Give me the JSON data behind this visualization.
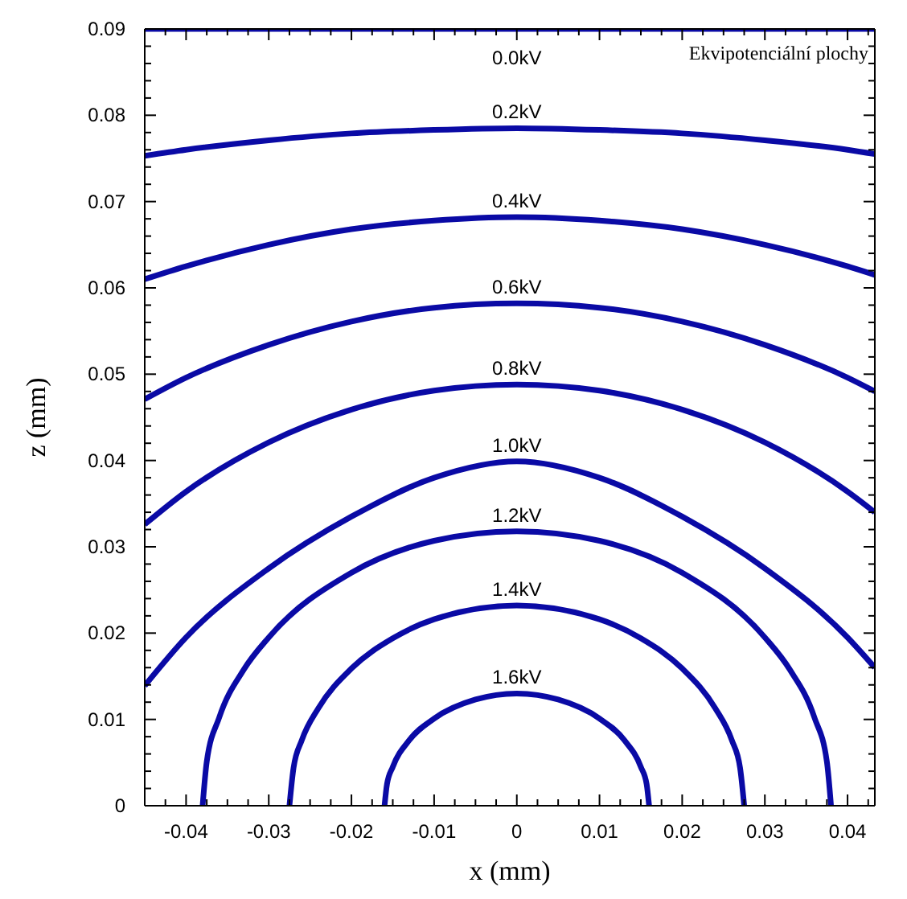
{
  "chart_data": {
    "type": "line",
    "xlabel": "x (mm)",
    "ylabel": "z (mm)",
    "annotations": [
      "Ekvipotenciální plochy"
    ],
    "xlim": [
      -0.045,
      0.0433
    ],
    "ylim": [
      0,
      0.09
    ],
    "xticks": [
      {
        "value": -0.045,
        "label": null
      },
      {
        "value": -0.0425,
        "label": null
      },
      -0.04,
      {
        "value": -0.0375,
        "label": null
      },
      {
        "value": -0.035,
        "label": null
      },
      {
        "value": -0.0325,
        "label": null
      },
      -0.03,
      {
        "value": -0.0275,
        "label": null
      },
      {
        "value": -0.025,
        "label": null
      },
      {
        "value": -0.0225,
        "label": null
      },
      -0.02,
      {
        "value": -0.0175,
        "label": null
      },
      {
        "value": -0.015,
        "label": null
      },
      {
        "value": -0.0125,
        "label": null
      },
      -0.01,
      {
        "value": -0.0075,
        "label": null
      },
      {
        "value": -0.005,
        "label": null
      },
      {
        "value": -0.0025,
        "label": null
      },
      0,
      {
        "value": 0.0025,
        "label": null
      },
      {
        "value": 0.005,
        "label": null
      },
      {
        "value": 0.0075,
        "label": null
      },
      0.01,
      {
        "value": 0.0125,
        "label": null
      },
      {
        "value": 0.015,
        "label": null
      },
      {
        "value": 0.0175,
        "label": null
      },
      0.02,
      {
        "value": 0.0225,
        "label": null
      },
      {
        "value": 0.025,
        "label": null
      },
      {
        "value": 0.0275,
        "label": null
      },
      0.03,
      {
        "value": 0.0325,
        "label": null
      },
      {
        "value": 0.035,
        "label": null
      },
      {
        "value": 0.0375,
        "label": null
      },
      0.04,
      {
        "value": 0.0425,
        "label": null
      }
    ],
    "yticks": [
      0,
      {
        "value": 0.002,
        "label": null
      },
      {
        "value": 0.004,
        "label": null
      },
      {
        "value": 0.006,
        "label": null
      },
      {
        "value": 0.008,
        "label": null
      },
      0.01,
      {
        "value": 0.012,
        "label": null
      },
      {
        "value": 0.014,
        "label": null
      },
      {
        "value": 0.016,
        "label": null
      },
      {
        "value": 0.018,
        "label": null
      },
      0.02,
      {
        "value": 0.022,
        "label": null
      },
      {
        "value": 0.024,
        "label": null
      },
      {
        "value": 0.026,
        "label": null
      },
      {
        "value": 0.028,
        "label": null
      },
      0.03,
      {
        "value": 0.032,
        "label": null
      },
      {
        "value": 0.034,
        "label": null
      },
      {
        "value": 0.036,
        "label": null
      },
      {
        "value": 0.038,
        "label": null
      },
      0.04,
      {
        "value": 0.042,
        "label": null
      },
      {
        "value": 0.044,
        "label": null
      },
      {
        "value": 0.046,
        "label": null
      },
      {
        "value": 0.048,
        "label": null
      },
      0.05,
      {
        "value": 0.052,
        "label": null
      },
      {
        "value": 0.054,
        "label": null
      },
      {
        "value": 0.056,
        "label": null
      },
      {
        "value": 0.058,
        "label": null
      },
      0.06,
      {
        "value": 0.062,
        "label": null
      },
      {
        "value": 0.064,
        "label": null
      },
      {
        "value": 0.066,
        "label": null
      },
      {
        "value": 0.068,
        "label": null
      },
      0.07,
      {
        "value": 0.072,
        "label": null
      },
      {
        "value": 0.074,
        "label": null
      },
      {
        "value": 0.076,
        "label": null
      },
      {
        "value": 0.078,
        "label": null
      },
      0.08,
      {
        "value": 0.082,
        "label": null
      },
      {
        "value": 0.084,
        "label": null
      },
      {
        "value": 0.086,
        "label": null
      },
      {
        "value": 0.088,
        "label": null
      },
      0.09
    ],
    "legend": false,
    "marker": "none",
    "line_style": "solid",
    "series": [
      {
        "name": "0.0kV",
        "color": "#0a0aa5",
        "x": [
          -0.045,
          0,
          0.0433
        ],
        "values": [
          0.09,
          0.09,
          0.09
        ]
      },
      {
        "name": "0.2kV",
        "color": "#0a0aa5",
        "x": [
          -0.045,
          -0.04,
          -0.03,
          -0.02,
          -0.01,
          0,
          0.01,
          0.02,
          0.03,
          0.04,
          0.0433
        ],
        "values": [
          0.0753,
          0.076,
          0.0771,
          0.0779,
          0.0783,
          0.0785,
          0.0783,
          0.0779,
          0.0771,
          0.076,
          0.0755
        ]
      },
      {
        "name": "0.4kV",
        "color": "#0a0aa5",
        "x": [
          -0.045,
          -0.04,
          -0.03,
          -0.02,
          -0.01,
          0,
          0.01,
          0.02,
          0.03,
          0.04,
          0.0433
        ],
        "values": [
          0.061,
          0.0625,
          0.065,
          0.0668,
          0.0678,
          0.0682,
          0.0678,
          0.0668,
          0.065,
          0.0625,
          0.0615
        ]
      },
      {
        "name": "0.6kV",
        "color": "#0a0aa5",
        "x": [
          -0.045,
          -0.04,
          -0.03,
          -0.02,
          -0.01,
          0,
          0.01,
          0.02,
          0.03,
          0.04,
          0.0433
        ],
        "values": [
          0.0471,
          0.0496,
          0.0534,
          0.0561,
          0.0577,
          0.0582,
          0.0577,
          0.0561,
          0.0534,
          0.0496,
          0.048
        ]
      },
      {
        "name": "0.8kV",
        "color": "#0a0aa5",
        "x": [
          -0.045,
          -0.04,
          -0.03,
          -0.02,
          -0.01,
          0,
          0.01,
          0.02,
          0.03,
          0.04,
          0.0433
        ],
        "values": [
          0.0326,
          0.0364,
          0.0421,
          0.0459,
          0.0481,
          0.0488,
          0.0481,
          0.0459,
          0.0421,
          0.0364,
          0.034
        ]
      },
      {
        "name": "1.0kV",
        "color": "#0a0aa5",
        "x": [
          -0.045,
          -0.04,
          -0.03,
          -0.02,
          -0.01,
          0,
          0.01,
          0.02,
          0.03,
          0.04,
          0.0433
        ],
        "values": [
          0.0139,
          0.0195,
          0.0275,
          0.0335,
          0.038,
          0.0399,
          0.038,
          0.0335,
          0.0275,
          0.0195,
          0.016
        ]
      },
      {
        "name": "1.2kV",
        "color": "#0a0aa5",
        "x": [
          -0.038,
          -0.0375,
          -0.036,
          -0.033,
          -0.03,
          -0.02,
          -0.01,
          0,
          0.01,
          0.02,
          0.03,
          0.033,
          0.036,
          0.0375,
          0.038
        ],
        "values": [
          0,
          0.0051,
          0.0102,
          0.0158,
          0.0195,
          0.027,
          0.0307,
          0.0318,
          0.0307,
          0.027,
          0.0195,
          0.0158,
          0.0102,
          0.0051,
          0
        ]
      },
      {
        "name": "1.4kV",
        "color": "#0a0aa5",
        "x": [
          -0.0275,
          -0.027,
          -0.026,
          -0.024,
          -0.02,
          -0.015,
          -0.01,
          0,
          0.01,
          0.015,
          0.02,
          0.024,
          0.026,
          0.027,
          0.0275
        ],
        "values": [
          0,
          0.0044,
          0.0076,
          0.0113,
          0.0159,
          0.0194,
          0.0216,
          0.0232,
          0.0216,
          0.0194,
          0.0159,
          0.0113,
          0.0076,
          0.0044,
          0
        ]
      },
      {
        "name": "1.6kV",
        "color": "#0a0aa5",
        "x": [
          -0.016,
          -0.0157,
          -0.015,
          -0.013,
          -0.01,
          -0.005,
          0,
          0.005,
          0.01,
          0.013,
          0.015,
          0.0157,
          0.016
        ],
        "values": [
          0,
          0.0025,
          0.0045,
          0.0076,
          0.0101,
          0.0123,
          0.013,
          0.0123,
          0.0101,
          0.0076,
          0.0045,
          0.0025,
          0
        ]
      }
    ]
  }
}
